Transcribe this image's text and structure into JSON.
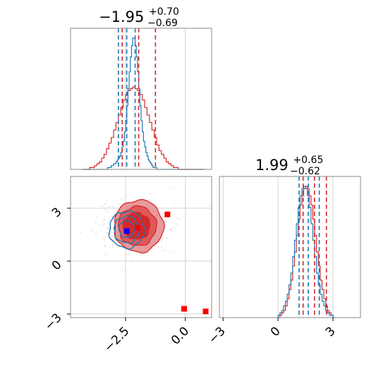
{
  "colors": {
    "red": "#d62728",
    "blue": "#1f77b4",
    "red_fill": "#e8999a",
    "red_fill_dark": "#d62728",
    "grid": "#c8c8c8",
    "axes_edge": "#888888",
    "marker_red": "#ff0000",
    "marker_blue": "#0000ff"
  },
  "chart_data": [
    {
      "id": "marginal-x",
      "type": "step-histogram",
      "title": {
        "value": "−1.95",
        "sup": "+0.70",
        "sub": "−0.69"
      },
      "xlim": [
        -4.8,
        1.1
      ],
      "grid_x": [
        -2.5,
        0.0
      ],
      "series": [
        {
          "color": "red",
          "bin_start": -4.3,
          "bin_width": 0.1,
          "counts": [
            0,
            0,
            0,
            1,
            1,
            2,
            3,
            4,
            6,
            8,
            11,
            14,
            17,
            21,
            25,
            29,
            33,
            37,
            40,
            42,
            43,
            44,
            43,
            42,
            40,
            37,
            33,
            29,
            25,
            21,
            17,
            13,
            10,
            8,
            6,
            4,
            3,
            2,
            1,
            1,
            0,
            0,
            0,
            0,
            0,
            0,
            0,
            0,
            0,
            0,
            0
          ]
        },
        {
          "color": "blue",
          "bin_start": -4.3,
          "bin_width": 0.05,
          "counts": [
            0,
            0,
            0,
            0,
            0,
            0,
            0,
            0,
            0,
            0,
            0,
            0,
            0,
            0,
            0,
            0,
            0,
            0,
            0,
            0,
            0,
            1,
            1,
            1,
            2,
            2,
            3,
            3,
            4,
            5,
            6,
            7,
            9,
            12,
            15,
            20,
            26,
            34,
            43,
            52,
            60,
            66,
            70,
            70,
            66,
            60,
            52,
            43,
            34,
            26,
            20,
            15,
            12,
            9,
            7,
            5,
            4,
            3,
            2,
            1,
            1,
            1,
            0,
            0,
            0,
            0,
            0,
            0,
            0,
            0,
            0,
            0,
            0,
            0,
            0,
            0,
            0,
            0,
            0,
            0,
            0,
            0,
            0,
            0,
            0,
            0,
            0,
            0,
            0,
            0,
            0,
            0,
            0,
            0,
            0,
            0,
            0,
            0,
            0,
            0,
            0
          ]
        }
      ],
      "quantile_lines": [
        {
          "color": "red",
          "values": [
            -2.64,
            -1.95,
            -1.25
          ]
        },
        {
          "color": "blue",
          "values": [
            -2.8,
            -2.45,
            -2.1
          ]
        }
      ]
    },
    {
      "id": "joint",
      "type": "2d-contour",
      "xlim": [
        -4.8,
        1.1
      ],
      "ylim": [
        -3.2,
        4.8
      ],
      "x_ticks": [
        -2.5,
        0.0
      ],
      "y_ticks": [
        -3,
        0,
        3
      ],
      "x_tick_labels": [
        "−2.5",
        "0.0"
      ],
      "y_tick_labels": [
        "−3",
        "0",
        "3"
      ],
      "red_center": [
        -1.95,
        1.99
      ],
      "blue_center": [
        -2.45,
        1.9
      ],
      "red_markers": [
        [
          -0.75,
          2.65
        ],
        [
          -2.0,
          1.9
        ],
        [
          -0.05,
          -2.7
        ],
        [
          0.85,
          -2.85
        ]
      ],
      "blue_markers": [
        [
          -2.45,
          1.7
        ]
      ]
    },
    {
      "id": "marginal-y",
      "type": "step-histogram",
      "title": {
        "value": "1.99",
        "sup": "+0.65",
        "sub": "−0.62"
      },
      "xlim": [
        -3.2,
        4.5
      ],
      "grid_x": [
        -3,
        0,
        3
      ],
      "x_tick_labels": [
        "−3",
        "0",
        "3"
      ],
      "series": [
        {
          "color": "red",
          "bin_start": 0.0,
          "bin_width": 0.1,
          "counts": [
            0,
            1,
            2,
            3,
            5,
            8,
            12,
            16,
            22,
            28,
            35,
            42,
            48,
            52,
            55,
            56,
            55,
            52,
            48,
            42,
            35,
            28,
            22,
            16,
            12,
            8,
            5,
            3,
            2,
            1,
            0
          ]
        },
        {
          "color": "blue",
          "bin_start": 0.0,
          "bin_width": 0.1,
          "counts": [
            1,
            2,
            3,
            5,
            7,
            10,
            14,
            19,
            26,
            33,
            40,
            47,
            52,
            55,
            56,
            55,
            52,
            47,
            40,
            33,
            26,
            19,
            14,
            10,
            7,
            5,
            3,
            2,
            1,
            1,
            0
          ]
        }
      ],
      "quantile_lines": [
        {
          "color": "red",
          "values": [
            1.37,
            1.99,
            2.64
          ]
        },
        {
          "color": "blue",
          "values": [
            1.15,
            1.65,
            2.25
          ]
        }
      ]
    }
  ]
}
